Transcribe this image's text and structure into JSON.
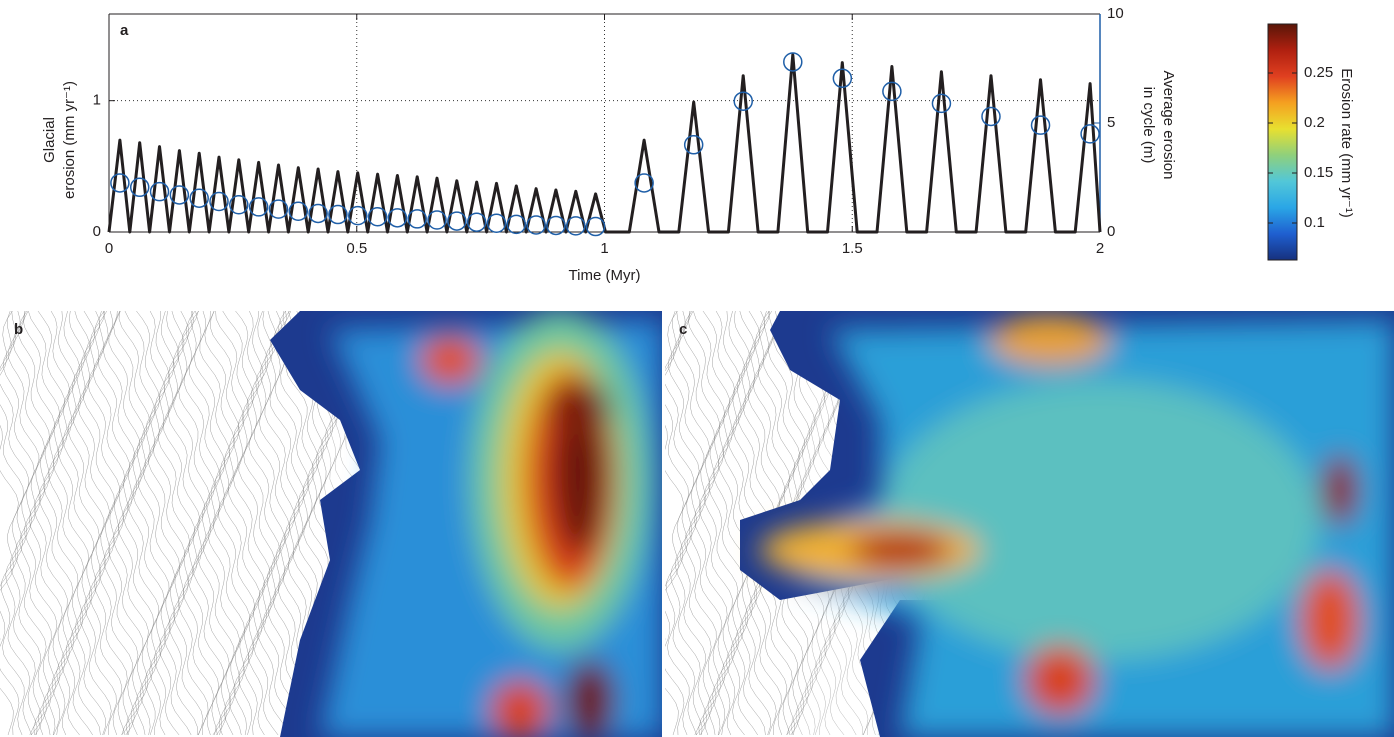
{
  "chart_data": [
    {
      "type": "line",
      "panel_label": "a",
      "xlabel": "Time (Myr)",
      "ylabel": [
        "Glacial",
        "erosion (mm yr⁻¹)"
      ],
      "y2label": [
        "Average erosion",
        "in cycle (m)"
      ],
      "xlim": [
        0,
        2
      ],
      "xticks": [
        0,
        0.5,
        1,
        1.5,
        2
      ],
      "ylim": [
        0,
        1.66
      ],
      "yticks": [
        0,
        1
      ],
      "y2lim": [
        0,
        10
      ],
      "y2ticks": [
        0,
        5,
        10
      ],
      "grid": true,
      "y2color": "#1f5fa8",
      "series": [
        {
          "style": "line",
          "color": "#231f20",
          "x": [
            0,
            0.022,
            0.042,
            0.062,
            0.082,
            0.102,
            0.122,
            0.142,
            0.162,
            0.182,
            0.202,
            0.222,
            0.242,
            0.262,
            0.282,
            0.302,
            0.322,
            0.342,
            0.362,
            0.382,
            0.402,
            0.422,
            0.442,
            0.462,
            0.482,
            0.502,
            0.522,
            0.542,
            0.562,
            0.582,
            0.602,
            0.622,
            0.642,
            0.662,
            0.682,
            0.702,
            0.722,
            0.742,
            0.762,
            0.782,
            0.802,
            0.822,
            0.842,
            0.862,
            0.882,
            0.902,
            0.922,
            0.942,
            0.962,
            0.982,
            1.002,
            1.05,
            1.08,
            1.11,
            1.15,
            1.18,
            1.21,
            1.25,
            1.28,
            1.31,
            1.35,
            1.38,
            1.41,
            1.45,
            1.48,
            1.51,
            1.55,
            1.58,
            1.61,
            1.65,
            1.68,
            1.71,
            1.75,
            1.78,
            1.81,
            1.85,
            1.88,
            1.91,
            1.95,
            1.98,
            2.0
          ],
          "values": [
            0,
            0.7,
            0,
            0.68,
            0,
            0.65,
            0,
            0.62,
            0,
            0.6,
            0,
            0.57,
            0,
            0.55,
            0,
            0.53,
            0,
            0.51,
            0,
            0.49,
            0,
            0.48,
            0,
            0.46,
            0,
            0.45,
            0,
            0.44,
            0,
            0.43,
            0,
            0.42,
            0,
            0.41,
            0,
            0.39,
            0,
            0.38,
            0,
            0.37,
            0,
            0.35,
            0,
            0.33,
            0,
            0.32,
            0,
            0.31,
            0,
            0.29,
            0,
            0,
            0.7,
            0,
            0,
            0.99,
            0,
            0,
            1.19,
            0,
            0,
            1.35,
            0,
            0,
            1.29,
            0,
            0,
            1.26,
            0,
            0,
            1.22,
            0,
            0,
            1.19,
            0,
            0,
            1.16,
            0,
            0,
            1.13,
            0
          ]
        },
        {
          "style": "circles",
          "color": "#1f5fa8",
          "axis": "y2",
          "x": [
            0.022,
            0.062,
            0.102,
            0.142,
            0.182,
            0.222,
            0.262,
            0.302,
            0.342,
            0.382,
            0.422,
            0.462,
            0.502,
            0.542,
            0.582,
            0.622,
            0.662,
            0.702,
            0.742,
            0.782,
            0.822,
            0.862,
            0.902,
            0.942,
            0.982,
            1.08,
            1.18,
            1.28,
            1.38,
            1.48,
            1.58,
            1.68,
            1.78,
            1.88,
            1.98
          ],
          "values": [
            2.25,
            2.05,
            1.85,
            1.7,
            1.55,
            1.4,
            1.25,
            1.15,
            1.05,
            0.95,
            0.85,
            0.8,
            0.75,
            0.7,
            0.65,
            0.6,
            0.55,
            0.5,
            0.45,
            0.4,
            0.35,
            0.32,
            0.3,
            0.28,
            0.25,
            2.25,
            4.0,
            6.0,
            7.8,
            7.05,
            6.45,
            5.9,
            5.3,
            4.9,
            4.5
          ]
        }
      ]
    },
    {
      "type": "colorbar",
      "label": "Erosion rate (mm yr⁻¹)",
      "ylim": [
        0.063,
        0.299
      ],
      "yticks": [
        0.1,
        0.15,
        0.2,
        0.25
      ],
      "colors": [
        "#16317e",
        "#1f5fd0",
        "#2aa6e6",
        "#52c7d8",
        "#8fd07c",
        "#e8e030",
        "#f5a020",
        "#e04020",
        "#b02010",
        "#5a1608"
      ]
    }
  ],
  "maps": [
    {
      "label": "b"
    },
    {
      "label": "c"
    }
  ]
}
